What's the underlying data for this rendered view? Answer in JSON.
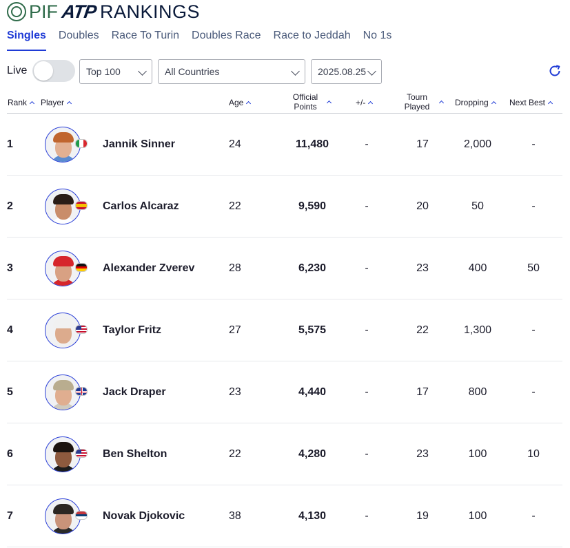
{
  "header": {
    "brand_pif": "PIF",
    "brand_atp": "ATP",
    "title": "RANKINGS"
  },
  "tabs": [
    {
      "label": "Singles",
      "active": true
    },
    {
      "label": "Doubles",
      "active": false
    },
    {
      "label": "Race To Turin",
      "active": false
    },
    {
      "label": "Doubles Race",
      "active": false
    },
    {
      "label": "Race to Jeddah",
      "active": false
    },
    {
      "label": "No 1s",
      "active": false
    }
  ],
  "filters": {
    "live_label": "Live",
    "live_on": false,
    "top": "Top 100",
    "country": "All Countries",
    "date": "2025.08.25"
  },
  "columns": {
    "rank": "Rank",
    "player": "Player",
    "age": "Age",
    "points_1": "Official",
    "points_2": "Points",
    "plus_minus": "+/-",
    "tourn_1": "Tourn",
    "tourn_2": "Played",
    "dropping": "Dropping",
    "next_best": "Next Best"
  },
  "colors": {
    "accent": "#1f3bd6",
    "pif_green": "#2f6b4a"
  },
  "players": [
    {
      "rank": "1",
      "name": "Jannik Sinner",
      "age": "24",
      "points": "11,480",
      "plus_minus": "-",
      "tourn_played": "17",
      "dropping": "2,000",
      "next_best": "-",
      "flag": "italy",
      "skin": "#e2b092",
      "hair": "#c0652e",
      "shirt": "#5a8bd0"
    },
    {
      "rank": "2",
      "name": "Carlos Alcaraz",
      "age": "22",
      "points": "9,590",
      "plus_minus": "-",
      "tourn_played": "20",
      "dropping": "50",
      "next_best": "-",
      "flag": "spain",
      "skin": "#c98d6a",
      "hair": "#2a1d17",
      "shirt": "#ffffff"
    },
    {
      "rank": "3",
      "name": "Alexander Zverev",
      "age": "28",
      "points": "6,230",
      "plus_minus": "-",
      "tourn_played": "23",
      "dropping": "400",
      "next_best": "50",
      "flag": "germany",
      "skin": "#d8a183",
      "hair": "#d6262b",
      "shirt": "#d6262b"
    },
    {
      "rank": "4",
      "name": "Taylor Fritz",
      "age": "27",
      "points": "5,575",
      "plus_minus": "-",
      "tourn_played": "22",
      "dropping": "1,300",
      "next_best": "-",
      "flag": "usa",
      "skin": "#dcab8d",
      "hair": "#f1f1f1",
      "shirt": "#f1f1f1"
    },
    {
      "rank": "5",
      "name": "Jack Draper",
      "age": "23",
      "points": "4,440",
      "plus_minus": "-",
      "tourn_played": "17",
      "dropping": "800",
      "next_best": "-",
      "flag": "uk",
      "skin": "#e0ae90",
      "hair": "#b9ad8f",
      "shirt": "#cfcbc0"
    },
    {
      "rank": "6",
      "name": "Ben Shelton",
      "age": "22",
      "points": "4,280",
      "plus_minus": "-",
      "tourn_played": "23",
      "dropping": "100",
      "next_best": "10",
      "flag": "usa",
      "skin": "#8e5a3e",
      "hair": "#1c1410",
      "shirt": "#1c1c1c"
    },
    {
      "rank": "7",
      "name": "Novak Djokovic",
      "age": "38",
      "points": "4,130",
      "plus_minus": "-",
      "tourn_played": "19",
      "dropping": "100",
      "next_best": "-",
      "flag": "serbia",
      "skin": "#c9937a",
      "hair": "#2b2622",
      "shirt": "#2a2a2a"
    }
  ]
}
